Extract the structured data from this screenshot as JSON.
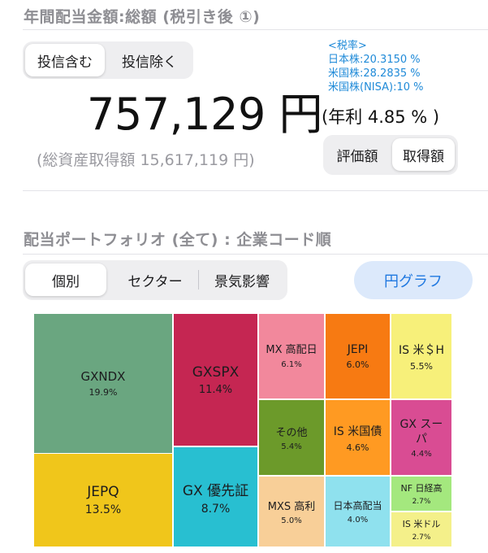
{
  "header": {
    "title": "年間配当金額:総額 (税引き後 ①)"
  },
  "trust_toggle": {
    "options": [
      "投信含む",
      "投信除く"
    ],
    "selected": 0
  },
  "tax_rates": {
    "heading": "<税率>",
    "lines": [
      "日本株:20.3150 %",
      "米国株:28.2835 %",
      "米国株(NISA):10 %"
    ]
  },
  "summary": {
    "total": "757,129 円",
    "annual_yield": "(年利 4.85 % )",
    "acquisition_cost": "(総資産取得額 15,617,119 円)"
  },
  "basis_toggle": {
    "options": [
      "評価額",
      "取得額"
    ],
    "selected": 1
  },
  "portfolio": {
    "title": "配当ポートフォリオ (全て) : 企業コード順",
    "view_tabs": [
      "個別",
      "セクター",
      "景気影響"
    ],
    "selected_tab": 0,
    "chart_button": "円グラフ"
  },
  "chart_data": {
    "type": "treemap",
    "items": [
      {
        "name": "GXNDX",
        "value": 19.9,
        "label": "19.9%",
        "color": "#6aa680"
      },
      {
        "name": "JEPQ",
        "value": 13.5,
        "label": "13.5%",
        "color": "#f0c61b"
      },
      {
        "name": "GXSPX",
        "value": 11.4,
        "label": "11.4%",
        "color": "#c52652"
      },
      {
        "name": "GX 優先証",
        "value": 8.7,
        "label": "8.7%",
        "color": "#28bfd1"
      },
      {
        "name": "MX 高配日",
        "value": 6.1,
        "label": "6.1%",
        "color": "#f2889c"
      },
      {
        "name": "JEPI",
        "value": 6.0,
        "label": "6.0%",
        "color": "#f77a12"
      },
      {
        "name": "IS 米＄H",
        "value": 5.5,
        "label": "5.5%",
        "color": "#f7f07a"
      },
      {
        "name": "その他",
        "value": 5.4,
        "label": "5.4%",
        "color": "#6c9a2a"
      },
      {
        "name": "MXS 高利",
        "value": 5.0,
        "label": "5.0%",
        "color": "#f8cf98"
      },
      {
        "name": "IS 米国債",
        "value": 4.6,
        "label": "4.6%",
        "color": "#ff9a22"
      },
      {
        "name": "GX スーパ",
        "value": 4.4,
        "label": "4.4%",
        "color": "#d94c93"
      },
      {
        "name": "日本高配当",
        "value": 4.0,
        "label": "4.0%",
        "color": "#8fe1ee"
      },
      {
        "name": "NF 日経高",
        "value": 2.7,
        "label": "2.7%",
        "color": "#a4e87e"
      },
      {
        "name": "IS 米ドル",
        "value": 2.7,
        "label": "2.7%",
        "color": "#f4f08a"
      }
    ]
  }
}
